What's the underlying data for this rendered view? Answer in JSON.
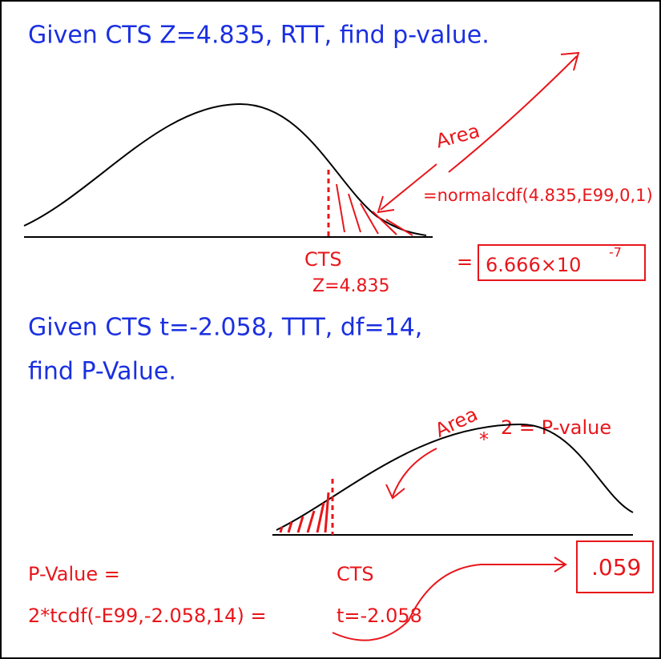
{
  "problem1": {
    "statement": "Given CTS Z=4.835, RTT, find p-value.",
    "area_label": "Area",
    "formula": "=normalcdf(4.835,E99,0,1)",
    "cts_label": "CTS",
    "cts_value": "Z=4.835",
    "equals": "=",
    "answer_mantissa": "6.666×10",
    "answer_exponent": "-7"
  },
  "problem2": {
    "statement_line1": "Given CTS t=-2.058, TTT, df=14,",
    "statement_line2": "find P-Value.",
    "area_label": "Area",
    "multiply": "*",
    "rule": "2 = P-value",
    "pvalue_label": "P-Value =",
    "formula": "2*tcdf(-E99,-2.058,14) =",
    "cts_label": "CTS",
    "cts_value": "t=-2.058",
    "answer": ".059"
  }
}
